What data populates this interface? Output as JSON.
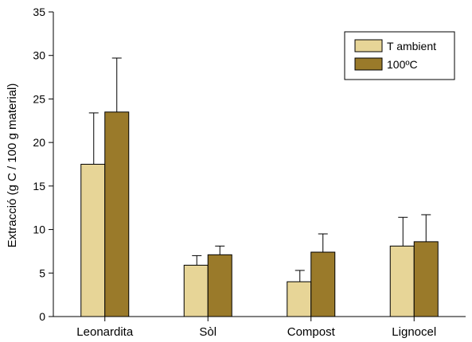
{
  "chart_data": {
    "type": "bar",
    "title": "",
    "xlabel": "",
    "ylabel": "Extracció (g C / 100 g material)",
    "ylim": [
      0,
      35
    ],
    "yticks": [
      0,
      5,
      10,
      15,
      20,
      25,
      30,
      35
    ],
    "categories": [
      "Leonardita",
      "Sòl",
      "Compost",
      "Lignocel"
    ],
    "series": [
      {
        "name": "T ambient",
        "color": "#e7d597",
        "values": [
          17.5,
          5.9,
          4.0,
          8.1
        ],
        "errors": [
          5.9,
          1.1,
          1.3,
          3.3
        ]
      },
      {
        "name": "100ºC",
        "color": "#9a7a2a",
        "values": [
          23.5,
          7.1,
          7.4,
          8.6
        ],
        "errors": [
          6.2,
          1.0,
          2.1,
          3.1
        ]
      }
    ],
    "grid": false,
    "error_bars": true,
    "legend_position": "top-right"
  }
}
